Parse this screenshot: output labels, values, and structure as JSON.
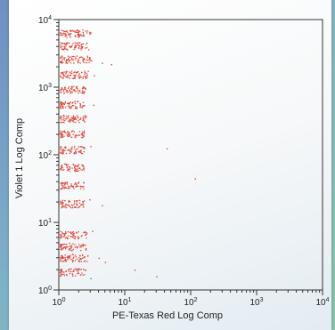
{
  "chart_data": {
    "type": "scatter",
    "title": "",
    "xlabel": "PE-Texas Red Log Comp",
    "ylabel": "Violet 1 Log Comp",
    "xscale": "log",
    "yscale": "log",
    "xlim": [
      1,
      10000
    ],
    "ylim": [
      1,
      10000
    ],
    "x_ticks": [
      {
        "base": "10",
        "exp": "0"
      },
      {
        "base": "10",
        "exp": "1"
      },
      {
        "base": "10",
        "exp": "2"
      },
      {
        "base": "10",
        "exp": "3"
      },
      {
        "base": "10",
        "exp": "4"
      }
    ],
    "y_ticks": [
      {
        "base": "10",
        "exp": "0"
      },
      {
        "base": "10",
        "exp": "1"
      },
      {
        "base": "10",
        "exp": "2"
      },
      {
        "base": "10",
        "exp": "3"
      },
      {
        "base": "10",
        "exp": "4"
      }
    ],
    "grid": false,
    "point_color": "#e0473a",
    "series": [
      {
        "note": "",
        "bands": [
          {
            "y": 6300,
            "x_min": 1.0,
            "x_max": 2.9,
            "count": 75
          },
          {
            "y": 4100,
            "x_min": 1.0,
            "x_max": 2.8,
            "count": 75
          },
          {
            "y": 2600,
            "x_min": 1.0,
            "x_max": 2.9,
            "count": 75
          },
          {
            "y": 1550,
            "x_min": 1.0,
            "x_max": 2.7,
            "count": 75
          },
          {
            "y": 930,
            "x_min": 1.0,
            "x_max": 2.5,
            "count": 70
          },
          {
            "y": 560,
            "x_min": 1.0,
            "x_max": 2.4,
            "count": 70
          },
          {
            "y": 345,
            "x_min": 1.0,
            "x_max": 2.5,
            "count": 70
          },
          {
            "y": 205,
            "x_min": 1.0,
            "x_max": 2.4,
            "count": 70
          },
          {
            "y": 120,
            "x_min": 1.0,
            "x_max": 2.5,
            "count": 70
          },
          {
            "y": 66,
            "x_min": 1.0,
            "x_max": 2.3,
            "count": 65
          },
          {
            "y": 36,
            "x_min": 1.0,
            "x_max": 2.3,
            "count": 65
          },
          {
            "y": 19,
            "x_min": 1.0,
            "x_max": 2.4,
            "count": 65
          },
          {
            "y": 6.6,
            "x_min": 1.0,
            "x_max": 2.6,
            "count": 65
          },
          {
            "y": 4.4,
            "x_min": 1.0,
            "x_max": 2.5,
            "count": 65
          },
          {
            "y": 3.0,
            "x_min": 1.0,
            "x_max": 2.7,
            "count": 70
          },
          {
            "y": 1.85,
            "x_min": 1.0,
            "x_max": 2.5,
            "count": 60
          }
        ],
        "outliers": [
          {
            "x": 3.0,
            "y": 6500
          },
          {
            "x": 3.1,
            "y": 2500
          },
          {
            "x": 4.5,
            "y": 2300
          },
          {
            "x": 6.2,
            "y": 2200
          },
          {
            "x": 3.4,
            "y": 1500
          },
          {
            "x": 3.3,
            "y": 550
          },
          {
            "x": 3.0,
            "y": 135
          },
          {
            "x": 2.9,
            "y": 22
          },
          {
            "x": 4.5,
            "y": 18
          },
          {
            "x": 3.2,
            "y": 7.5
          },
          {
            "x": 4.0,
            "y": 3.0
          },
          {
            "x": 5.0,
            "y": 2.6
          },
          {
            "x": 3.0,
            "y": 1.5
          },
          {
            "x": 14,
            "y": 2.0
          },
          {
            "x": 30,
            "y": 1.6
          },
          {
            "x": 43,
            "y": 125
          },
          {
            "x": 115,
            "y": 45
          }
        ]
      }
    ]
  }
}
